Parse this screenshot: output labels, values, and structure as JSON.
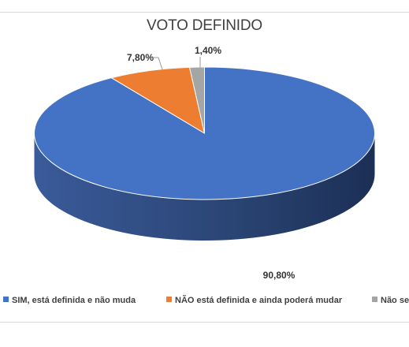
{
  "chart_data": {
    "type": "pie",
    "title": "VOTO DEFINIDO",
    "categories": [
      "SIM, está definida e não muda",
      "NÃO está definida e ainda poderá mudar",
      "Não se"
    ],
    "values": [
      90.8,
      7.8,
      1.4
    ],
    "labels": [
      "90,80%",
      "7,80%",
      "1,40%"
    ],
    "colors": [
      "#4472c4",
      "#ed7d31",
      "#a5a5a5"
    ],
    "legend_position": "bottom",
    "style": "3d"
  }
}
